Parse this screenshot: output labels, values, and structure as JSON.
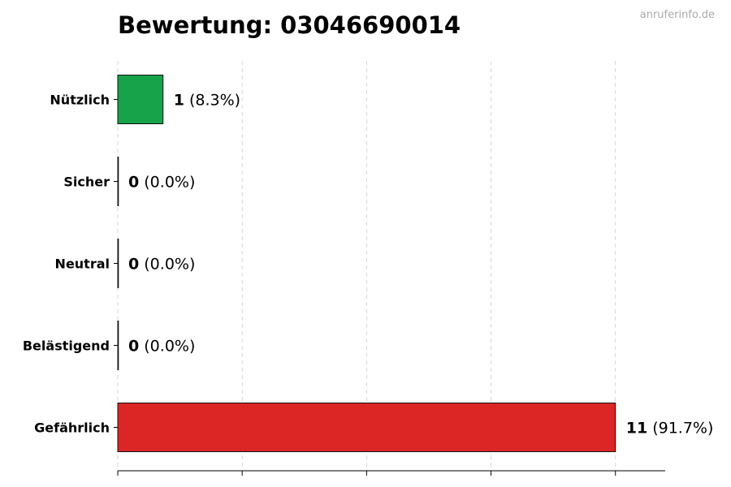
{
  "chart_data": {
    "type": "bar",
    "orientation": "horizontal",
    "title": "Bewertung: 03046690014",
    "watermark": "anruferinfo.de",
    "xlabel": "",
    "ylabel": "",
    "xlim": [
      0,
      12.1
    ],
    "x_ticks": [
      0,
      2.75,
      5.5,
      8.25,
      11
    ],
    "x_tick_labels_shown": false,
    "grid": "vertical dashed",
    "categories": [
      "Nützlich",
      "Sicher",
      "Neutral",
      "Belästigend",
      "Gefährlich"
    ],
    "values": [
      1,
      0,
      0,
      0,
      11
    ],
    "percent_labels": [
      "(8.3%)",
      "(0.0%)",
      "(0.0%)",
      "(0.0%)",
      "(91.7%)"
    ],
    "colors": [
      "#16a34a",
      "#22c55e",
      "#9ca3af",
      "#f59e0b",
      "#dc2626"
    ]
  }
}
